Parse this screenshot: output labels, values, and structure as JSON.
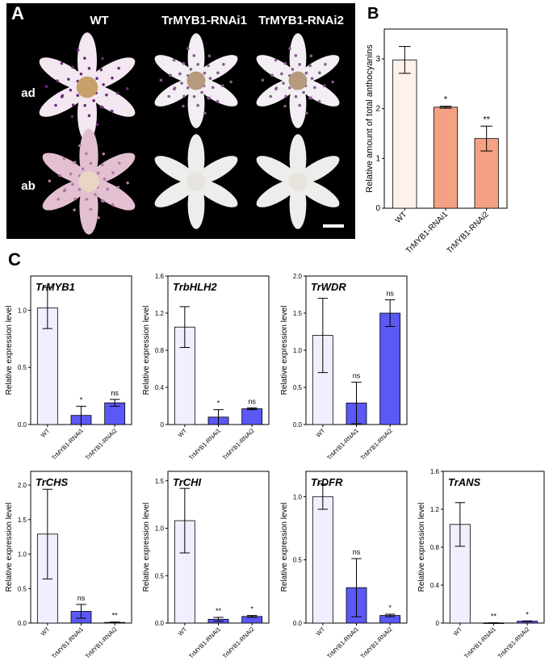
{
  "panels": {
    "a": "A",
    "b": "B",
    "c": "C"
  },
  "photo": {
    "columns": [
      "WT",
      "TrMYB1-RNAi1",
      "TrMYB1-RNAi2"
    ],
    "rows": [
      "ad",
      "ab"
    ]
  },
  "colors": {
    "wt": "#fff0ea",
    "rnai_b": "#f4a283",
    "wt_c": "#f0efff",
    "rnai_c": "#5b58f5"
  },
  "chart_data": [
    {
      "id": "anthocyanins",
      "type": "bar",
      "title": "",
      "ylabel": "Relative amount of total anthocyanins",
      "xlabel": "",
      "categories": [
        "WT",
        "TrMYB1-RNAi1",
        "TrMYB1-RNAi2"
      ],
      "values": [
        2.98,
        2.03,
        1.4
      ],
      "errors": [
        0.27,
        0.02,
        0.25
      ],
      "signif": [
        "",
        "*",
        "**"
      ],
      "ylim": [
        0,
        3.6
      ],
      "yticks": [
        "0",
        "1",
        "2",
        "3"
      ],
      "grid": false
    },
    {
      "id": "TrMYB1",
      "type": "bar",
      "title": "TrMYB1",
      "ylabel": "Relative expression level",
      "xlabel": "",
      "categories": [
        "WT",
        "TrMYB1-RNAi1",
        "TrMYB1-RNAi2"
      ],
      "values": [
        1.02,
        0.08,
        0.19
      ],
      "errors": [
        0.18,
        0.08,
        0.03
      ],
      "signif": [
        "",
        "*",
        "ns"
      ],
      "ylim": [
        0,
        1.3
      ],
      "yticks": [
        "0.0",
        "0.5",
        "1.0"
      ],
      "grid": false
    },
    {
      "id": "TrbHLH2",
      "type": "bar",
      "title": "TrbHLH2",
      "ylabel": "Relative expression level",
      "xlabel": "",
      "categories": [
        "WT",
        "TrMYB1-RNAi1",
        "TrMYB1-RNAi2"
      ],
      "values": [
        1.05,
        0.08,
        0.17
      ],
      "errors": [
        0.22,
        0.08,
        0.01
      ],
      "signif": [
        "",
        "*",
        "ns"
      ],
      "ylim": [
        0,
        1.6
      ],
      "yticks": [
        "0",
        "0.4",
        "0.8",
        "1.2",
        "1.6"
      ],
      "grid": false
    },
    {
      "id": "TrWDR",
      "type": "bar",
      "title": "TrWDR",
      "ylabel": "Relative expression level",
      "xlabel": "",
      "categories": [
        "WT",
        "TrMYB1-RNAi1",
        "TrMYB1-RNAi2"
      ],
      "values": [
        1.2,
        0.29,
        1.5
      ],
      "errors": [
        0.5,
        0.28,
        0.18
      ],
      "signif": [
        "",
        "ns",
        "ns"
      ],
      "ylim": [
        0,
        2.0
      ],
      "yticks": [
        "0.0",
        "0.5",
        "1.0",
        "1.5",
        "2.0"
      ],
      "grid": false
    },
    {
      "id": "TrCHS",
      "type": "bar",
      "title": "TrCHS",
      "ylabel": "Relative expression level",
      "xlabel": "",
      "categories": [
        "WT",
        "TrMYB1-RNAi1",
        "TrMYB1-RNAi2"
      ],
      "values": [
        1.29,
        0.17,
        0.01
      ],
      "errors": [
        0.65,
        0.1,
        0.005
      ],
      "signif": [
        "",
        "ns",
        "**"
      ],
      "ylim": [
        0,
        2.2
      ],
      "yticks": [
        "0.0",
        "0.5",
        "1.0",
        "1.5",
        "2.0"
      ],
      "grid": false
    },
    {
      "id": "TrCHI",
      "type": "bar",
      "title": "TrCHI",
      "ylabel": "Relative expression level",
      "xlabel": "",
      "categories": [
        "WT",
        "TrMYB1-RNAi1",
        "TrMYB1-RNAi2"
      ],
      "values": [
        1.08,
        0.04,
        0.07
      ],
      "errors": [
        0.34,
        0.02,
        0.01
      ],
      "signif": [
        "",
        "**",
        "*"
      ],
      "ylim": [
        0,
        1.6
      ],
      "yticks": [
        "0.0",
        "0.5",
        "1.0",
        "1.5"
      ],
      "grid": false
    },
    {
      "id": "TrDFR",
      "type": "bar",
      "title": "TrDFR",
      "ylabel": "Relative expression level",
      "xlabel": "",
      "categories": [
        "WT",
        "TrMYB1-RNAi1",
        "TrMYB1-RNAi2"
      ],
      "values": [
        1.0,
        0.28,
        0.06
      ],
      "errors": [
        0.1,
        0.23,
        0.01
      ],
      "signif": [
        "",
        "ns",
        "*"
      ],
      "ylim": [
        0,
        1.2
      ],
      "yticks": [
        "0.0",
        "0.5",
        "1.0"
      ],
      "grid": false
    },
    {
      "id": "TrANS",
      "type": "bar",
      "title": "TrANS",
      "ylabel": "Relative expression level",
      "xlabel": "",
      "categories": [
        "WT",
        "TrMYB1-RNAi1",
        "TrMYB1-RNAi2"
      ],
      "values": [
        1.04,
        0.002,
        0.02
      ],
      "errors": [
        0.23,
        0.001,
        0.003
      ],
      "signif": [
        "",
        "**",
        "*"
      ],
      "ylim": [
        0,
        1.6
      ],
      "yticks": [
        "0",
        "0.4",
        "0.8",
        "1.2",
        "1.6"
      ],
      "grid": false
    }
  ]
}
